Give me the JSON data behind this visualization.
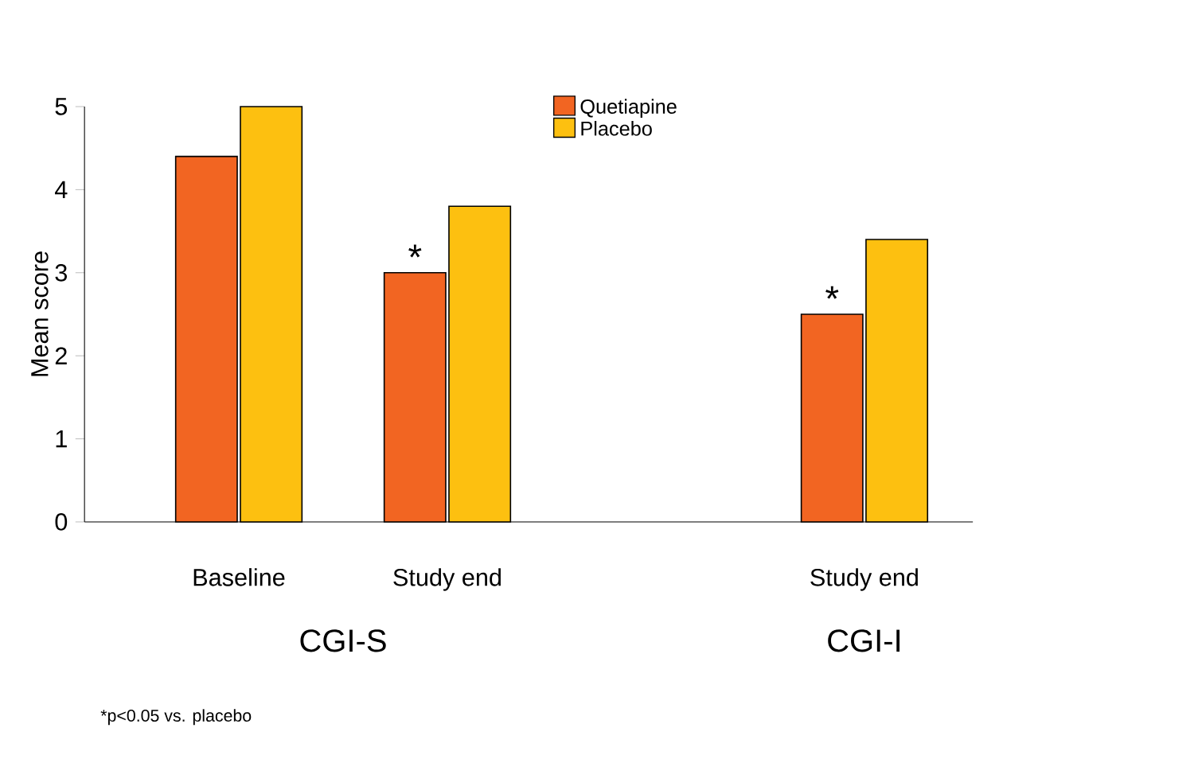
{
  "chart_data": {
    "type": "bar",
    "ylabel": "Mean score",
    "categories": [
      "Baseline",
      "Study end",
      null,
      "Study end"
    ],
    "series": [
      {
        "name": "Quetiapine",
        "color": "#f26522",
        "values": [
          4.4,
          3.0,
          null,
          2.5
        ]
      },
      {
        "name": "Placebo",
        "color": "#fdc010",
        "values": [
          5.0,
          3.8,
          null,
          3.4
        ]
      }
    ],
    "ylim": [
      0,
      5
    ],
    "yticks": [
      0,
      1,
      2,
      3,
      4,
      5
    ],
    "grid": false,
    "legend": "top right",
    "annotations": [
      "CGI-S",
      "CGI-I",
      "*",
      "*",
      "*p<0.05 vs. placebo"
    ]
  }
}
